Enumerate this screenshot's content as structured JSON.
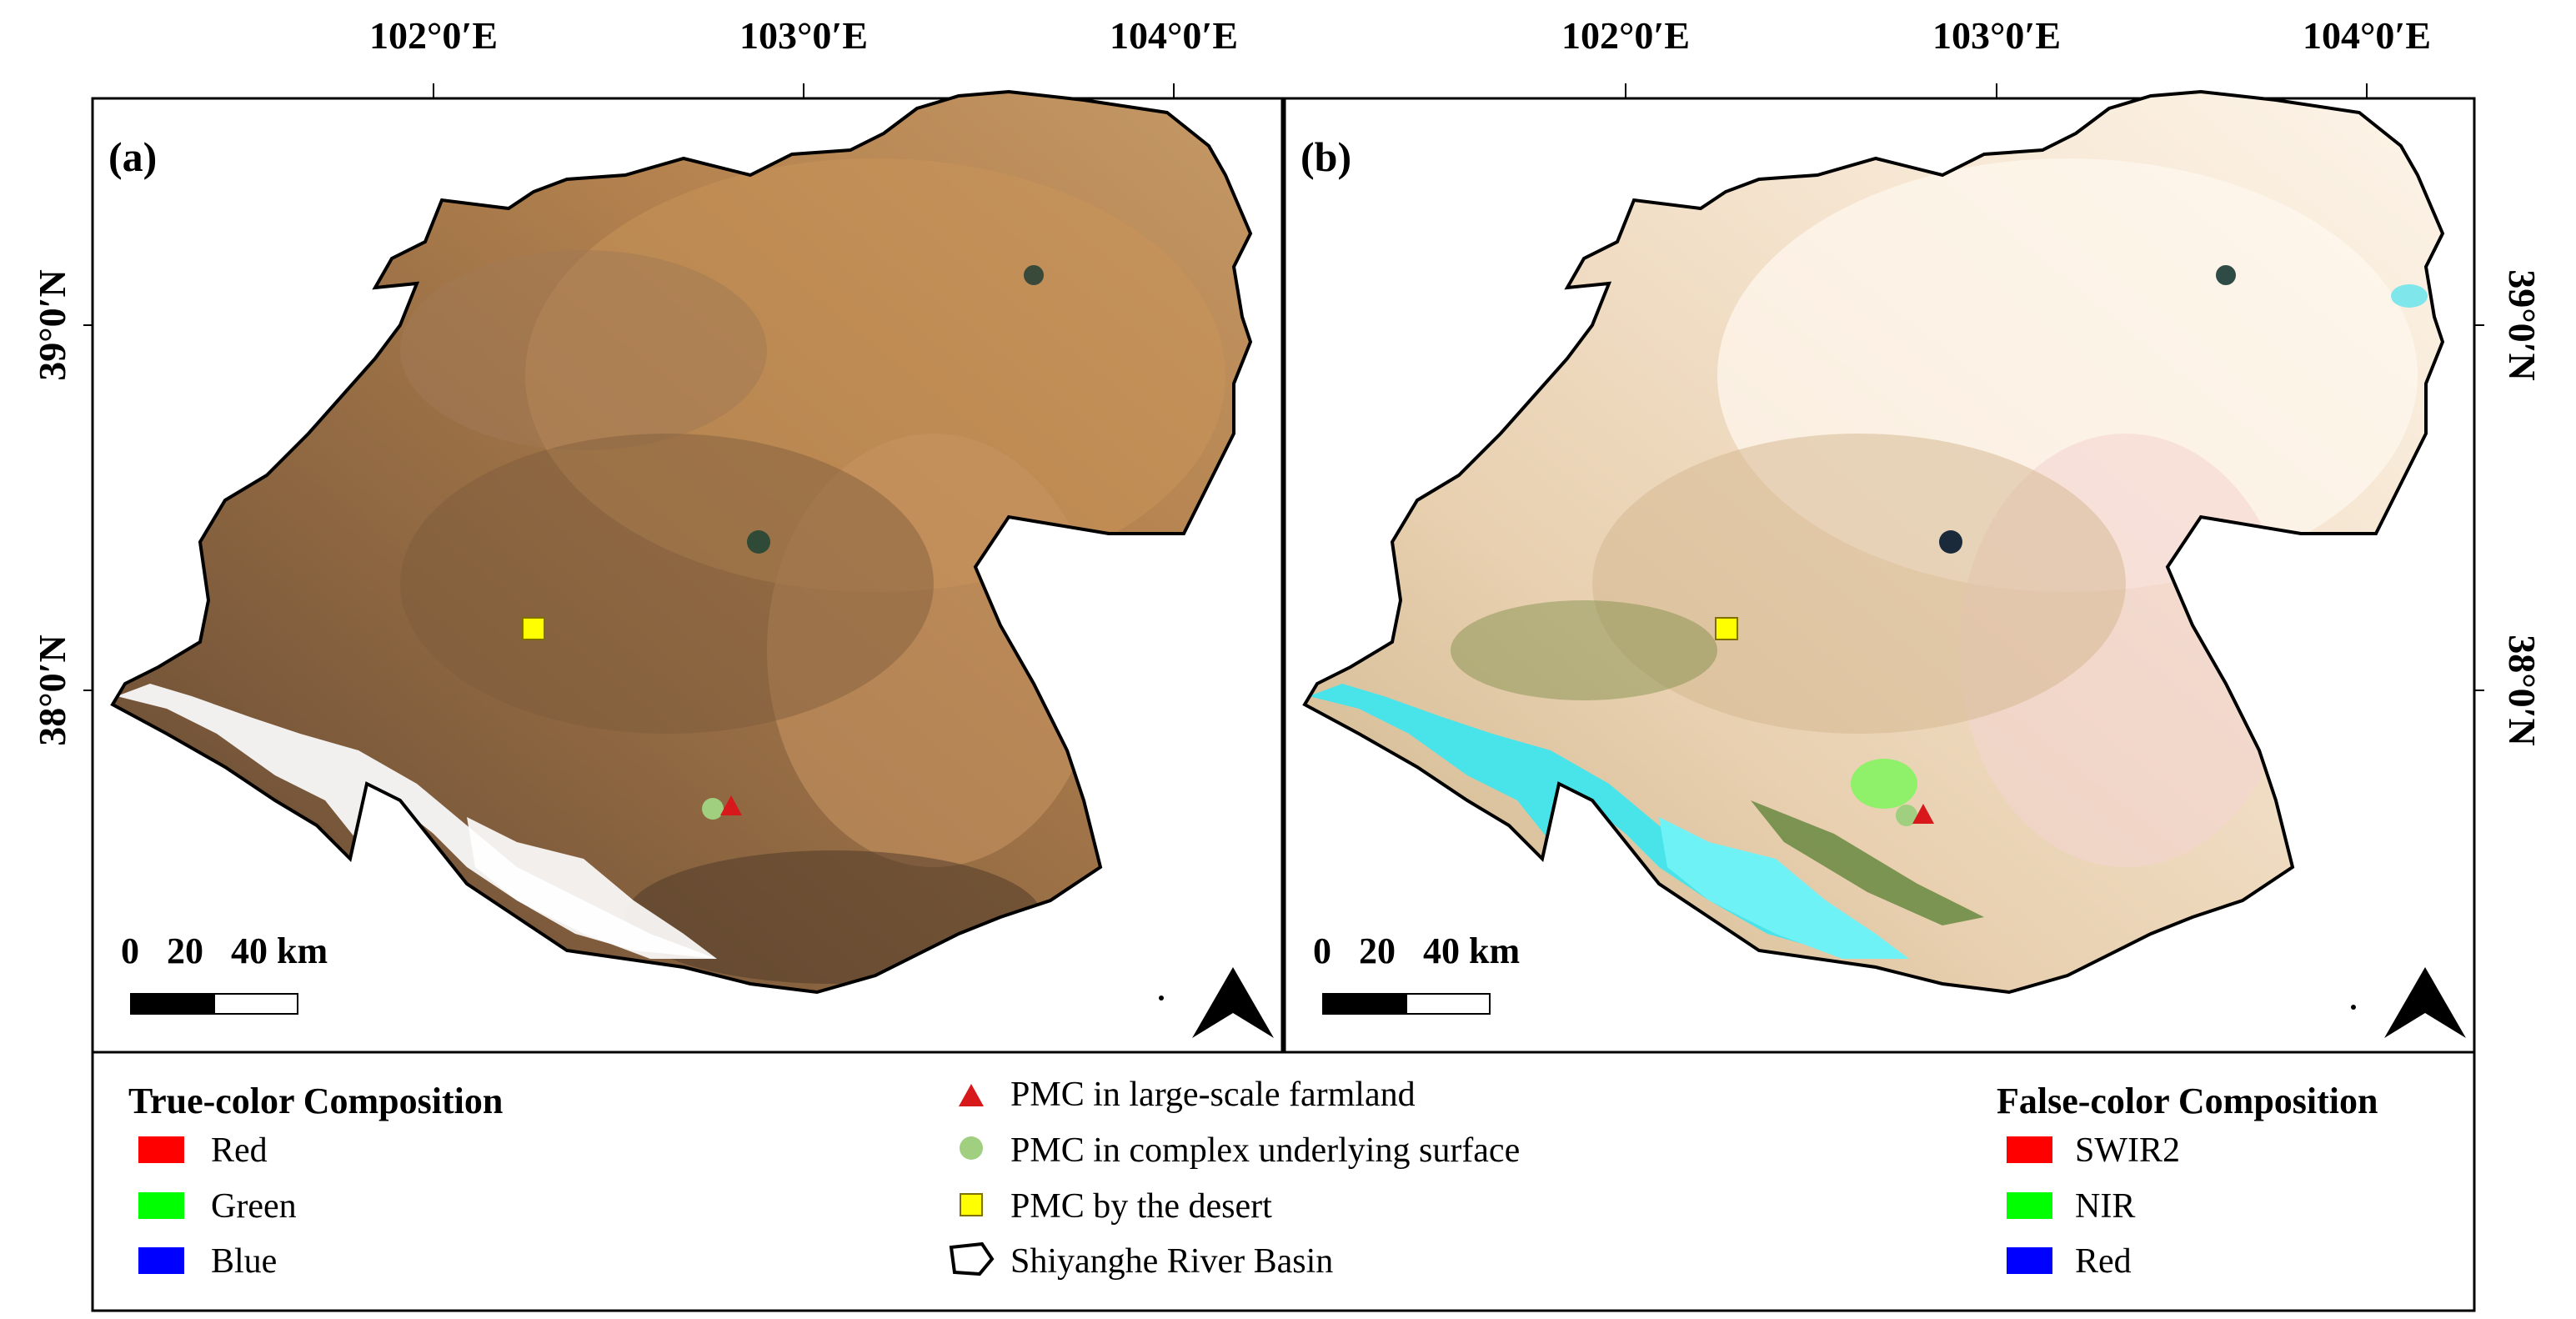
{
  "coords": {
    "lon_labels": [
      "102°0′E",
      "103°0′E",
      "104°0′E"
    ],
    "lat_labels": [
      "39°0′N",
      "38°0′N"
    ]
  },
  "panels": [
    {
      "label": "(a)",
      "scale_label": "0   20   40 km"
    },
    {
      "label": "(b)",
      "scale_label": "0   20   40 km"
    }
  ],
  "legend": {
    "true_color": {
      "title": "True-color Composition",
      "items": [
        {
          "label": "Red",
          "color": "#ff0000"
        },
        {
          "label": "Green",
          "color": "#00ff00"
        },
        {
          "label": "Blue",
          "color": "#0000ff"
        }
      ]
    },
    "sites": [
      {
        "label": "PMC in large-scale farmland",
        "symbol": "triangle",
        "color": "#d7191c"
      },
      {
        "label": "PMC in complex underlying surface",
        "symbol": "circle",
        "color": "#9fcf7f"
      },
      {
        "label": "PMC by the desert",
        "symbol": "square",
        "color": "#ffff00"
      },
      {
        "label": "Shiyanghe River Basin",
        "symbol": "outline",
        "color": "#000000"
      }
    ],
    "false_color": {
      "title": "False-color Composition",
      "items": [
        {
          "label": "SWIR2",
          "color": "#ff0000"
        },
        {
          "label": "NIR",
          "color": "#00ff00"
        },
        {
          "label": "Red",
          "color": "#0000ff"
        }
      ]
    }
  }
}
